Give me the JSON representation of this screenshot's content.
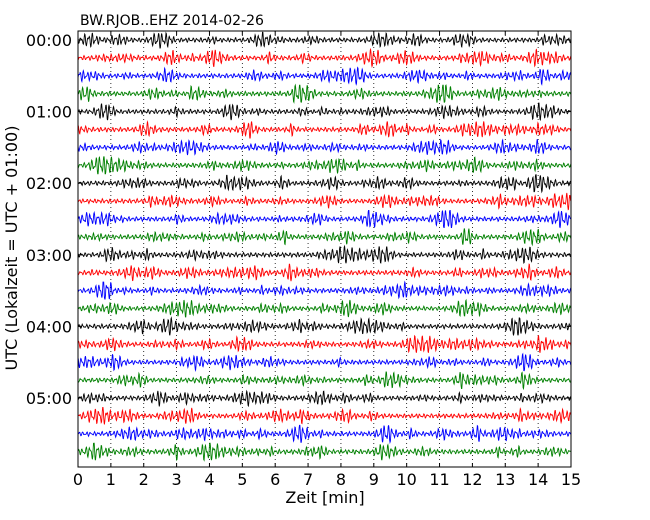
{
  "chart_data": {
    "type": "line",
    "title": "BW.RJOB..EHZ 2014-02-26",
    "xlabel": "Zeit  [min]",
    "ylabel": "UTC (Lokalzeit = UTC + 01:00)",
    "xlim": [
      0,
      15
    ],
    "x_ticks": [
      "0",
      "1",
      "2",
      "3",
      "4",
      "5",
      "6",
      "7",
      "8",
      "9",
      "10",
      "11",
      "12",
      "13",
      "14",
      "15"
    ],
    "y_tick_labels": [
      "00:00",
      "01:00",
      "02:00",
      "03:00",
      "04:00",
      "05:00"
    ],
    "grid": "vertical dotted",
    "trace_interval_min": 15,
    "trace_count": 24,
    "trace_colors": [
      "#000000",
      "#ff0000",
      "#0000ff",
      "#008000"
    ],
    "series": [
      {
        "start": "00:00"
      },
      {
        "start": "00:15"
      },
      {
        "start": "00:30"
      },
      {
        "start": "00:45"
      },
      {
        "start": "01:00"
      },
      {
        "start": "01:15"
      },
      {
        "start": "01:30"
      },
      {
        "start": "01:45"
      },
      {
        "start": "02:00"
      },
      {
        "start": "02:15"
      },
      {
        "start": "02:30"
      },
      {
        "start": "02:45"
      },
      {
        "start": "03:00"
      },
      {
        "start": "03:15"
      },
      {
        "start": "03:30"
      },
      {
        "start": "03:45"
      },
      {
        "start": "04:00"
      },
      {
        "start": "04:15"
      },
      {
        "start": "04:30"
      },
      {
        "start": "04:45"
      },
      {
        "start": "05:00"
      },
      {
        "start": "05:15"
      },
      {
        "start": "05:30"
      },
      {
        "start": "05:45"
      }
    ]
  }
}
